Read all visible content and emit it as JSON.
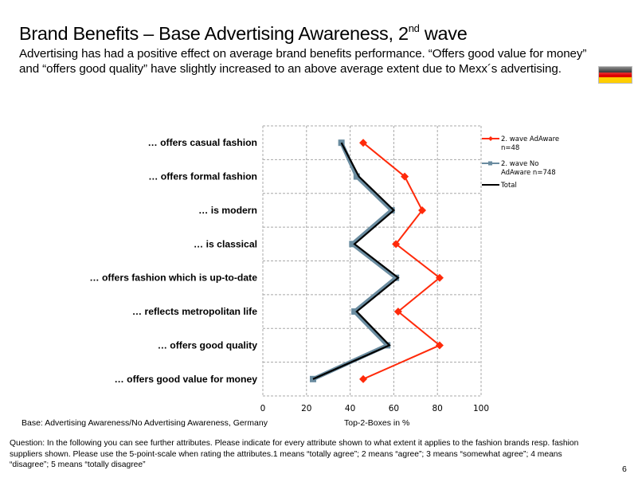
{
  "header": {
    "title_main": "Brand Benefits – Base Advertising Awareness, 2",
    "title_sup": "nd",
    "title_end": " wave",
    "subtitle": "Advertising has had a positive effect on average brand benefits performance. “Offers good value for money” and “offers good quality” have slightly increased to an above average extent due to Mexx´s advertising.",
    "flag_icon": "germany-flag-icon",
    "flag_colors": [
      "#000000",
      "#dd0000",
      "#ffce00"
    ]
  },
  "footer": {
    "base": "Base: Advertising Awareness/No Advertising Awareness, Germany",
    "question": "Question:   In the following you can see further attributes. Please indicate for every attribute shown to what extent it applies to the fashion brands resp. fashion suppliers shown. Please use the 5-point-scale when rating the attributes.1 means “totally agree”; 2 means “agree”; 3 means “somewhat agree”; 4 means “disagree”; 5 means “totally disagree”",
    "page_number": "6"
  },
  "chart_data": {
    "type": "line",
    "orientation": "horizontal-profile",
    "title": "",
    "xlabel": "Top-2-Boxes in %",
    "ylabel": "",
    "xlim": [
      0,
      100
    ],
    "xticks": [
      "0",
      "20",
      "40",
      "60",
      "80",
      "100"
    ],
    "grid": true,
    "legend_position": "right",
    "categories": [
      "… offers casual fashion",
      "… offers formal fashion",
      "… is modern",
      "… is classical",
      "… offers fashion which is up-to-date",
      "… reflects metropolitan life",
      "… offers good quality",
      "… offers good value for money"
    ],
    "series": [
      {
        "name": "2. wave AdAware n=48",
        "legend_lines": [
          "2. wave AdAware",
          "n=48"
        ],
        "color": "#ff2a0a",
        "marker": "diamond",
        "values": [
          46,
          65,
          73,
          61,
          81,
          62,
          81,
          46
        ]
      },
      {
        "name": "2. wave No AdAware n=748",
        "legend_lines": [
          "2. wave No",
          "AdAware n=748"
        ],
        "color": "#6a8ca0",
        "marker": "square",
        "values": [
          36,
          43,
          59,
          41,
          61,
          42,
          57,
          23
        ]
      },
      {
        "name": "Total",
        "legend_lines": [
          "Total"
        ],
        "color": "#000000",
        "marker": "none",
        "values": [
          36,
          44,
          60,
          42,
          62,
          43,
          58,
          23
        ]
      }
    ]
  }
}
